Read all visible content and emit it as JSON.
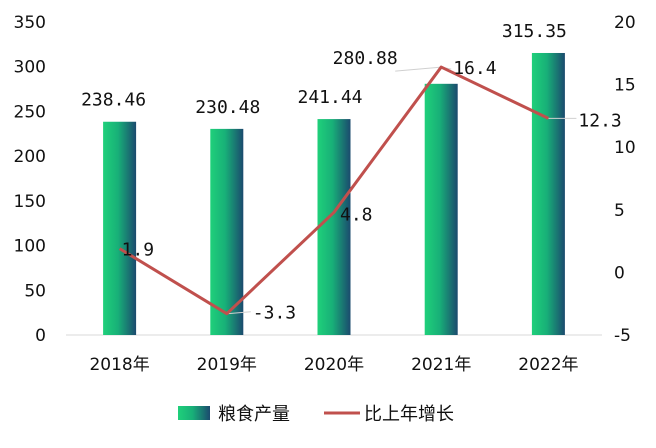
{
  "chart_data": {
    "type": "bar+line",
    "categories": [
      "2018年",
      "2019年",
      "2020年",
      "2021年",
      "2022年"
    ],
    "series": [
      {
        "name": "粮食产量",
        "type": "bar",
        "axis": "left",
        "values": [
          238.46,
          230.48,
          241.44,
          280.88,
          315.35
        ],
        "value_labels": [
          "238.46",
          "230.48",
          "241.44",
          "280.88",
          "315.35"
        ],
        "color_start": "#1fd07a",
        "color_end": "#1b4a6e"
      },
      {
        "name": "比上年增长",
        "type": "line",
        "axis": "right",
        "values": [
          1.9,
          -3.3,
          4.8,
          16.4,
          12.3
        ],
        "value_labels": [
          "1.9",
          "-3.3",
          "4.8",
          "16.4",
          "12.3"
        ],
        "color": "#c0504d"
      }
    ],
    "y_left": {
      "min": 0,
      "max": 350,
      "ticks": [
        "0",
        "50",
        "100",
        "150",
        "200",
        "250",
        "300",
        "350"
      ]
    },
    "y_right": {
      "min": -5,
      "max": 20,
      "ticks": [
        "-5",
        "0",
        "5",
        "10",
        "15",
        "20"
      ]
    },
    "legend": {
      "position": "bottom",
      "items": [
        "粮食产量",
        "比上年增长"
      ]
    },
    "grid": false
  }
}
